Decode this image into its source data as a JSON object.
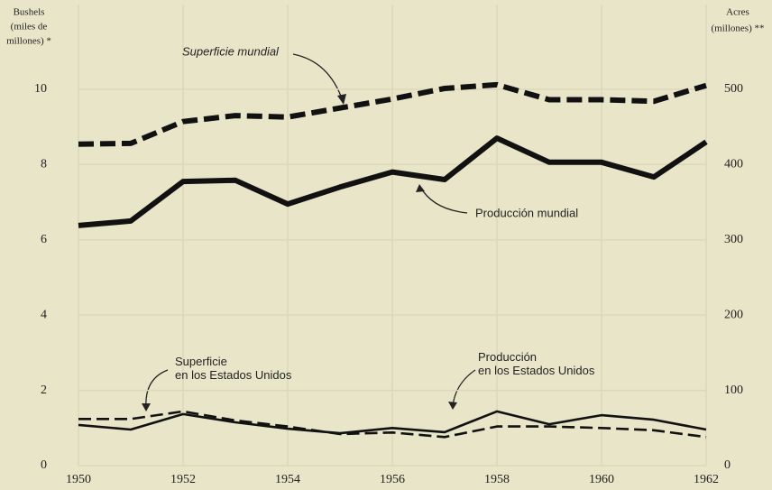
{
  "chart_data": {
    "type": "line",
    "y_label": [
      "Bushels",
      "(miles de",
      "millones) *"
    ],
    "y2_label": [
      "Acres",
      "(millones) **"
    ],
    "x": [
      1950,
      1951,
      1952,
      1953,
      1954,
      1955,
      1956,
      1957,
      1958,
      1959,
      1960,
      1961,
      1962
    ],
    "xlim": [
      1950,
      1962
    ],
    "xticks": [
      1950,
      1952,
      1954,
      1956,
      1958,
      1960,
      1962
    ],
    "ylim": [
      0,
      12.25
    ],
    "yticks": [
      0,
      2,
      4,
      6,
      8,
      10
    ],
    "y2lim": [
      0,
      612.5
    ],
    "y2ticks": [
      0,
      100,
      200,
      300,
      400,
      500
    ],
    "grid": true,
    "series": [
      {
        "name": "Superficie mundial",
        "color": "#111111",
        "axis": "y2",
        "dashed": true,
        "thick": true,
        "values": [
          427,
          428,
          457,
          465,
          463,
          475,
          487,
          501,
          506,
          486,
          486,
          484,
          505
        ]
      },
      {
        "name": "Producción mundial",
        "color": "#111111",
        "dashed": false,
        "thick": true,
        "values": [
          6.38,
          6.5,
          7.55,
          7.58,
          6.95,
          7.4,
          7.8,
          7.6,
          8.7,
          8.06,
          8.06,
          7.67,
          8.6
        ]
      },
      {
        "name": "Superficie en los Estados Unidos",
        "color": "#111111",
        "axis": "y2",
        "dashed": true,
        "thick": false,
        "values": [
          62,
          62,
          72,
          60,
          52,
          42,
          44,
          38,
          52,
          52,
          50,
          47,
          38
        ]
      },
      {
        "name": "Producción en los Estados Unidos",
        "color": "#111111",
        "dashed": false,
        "thick": false,
        "values": [
          1.08,
          0.96,
          1.37,
          1.15,
          0.98,
          0.86,
          1.0,
          0.89,
          1.44,
          1.1,
          1.34,
          1.22,
          0.96
        ]
      }
    ]
  }
}
